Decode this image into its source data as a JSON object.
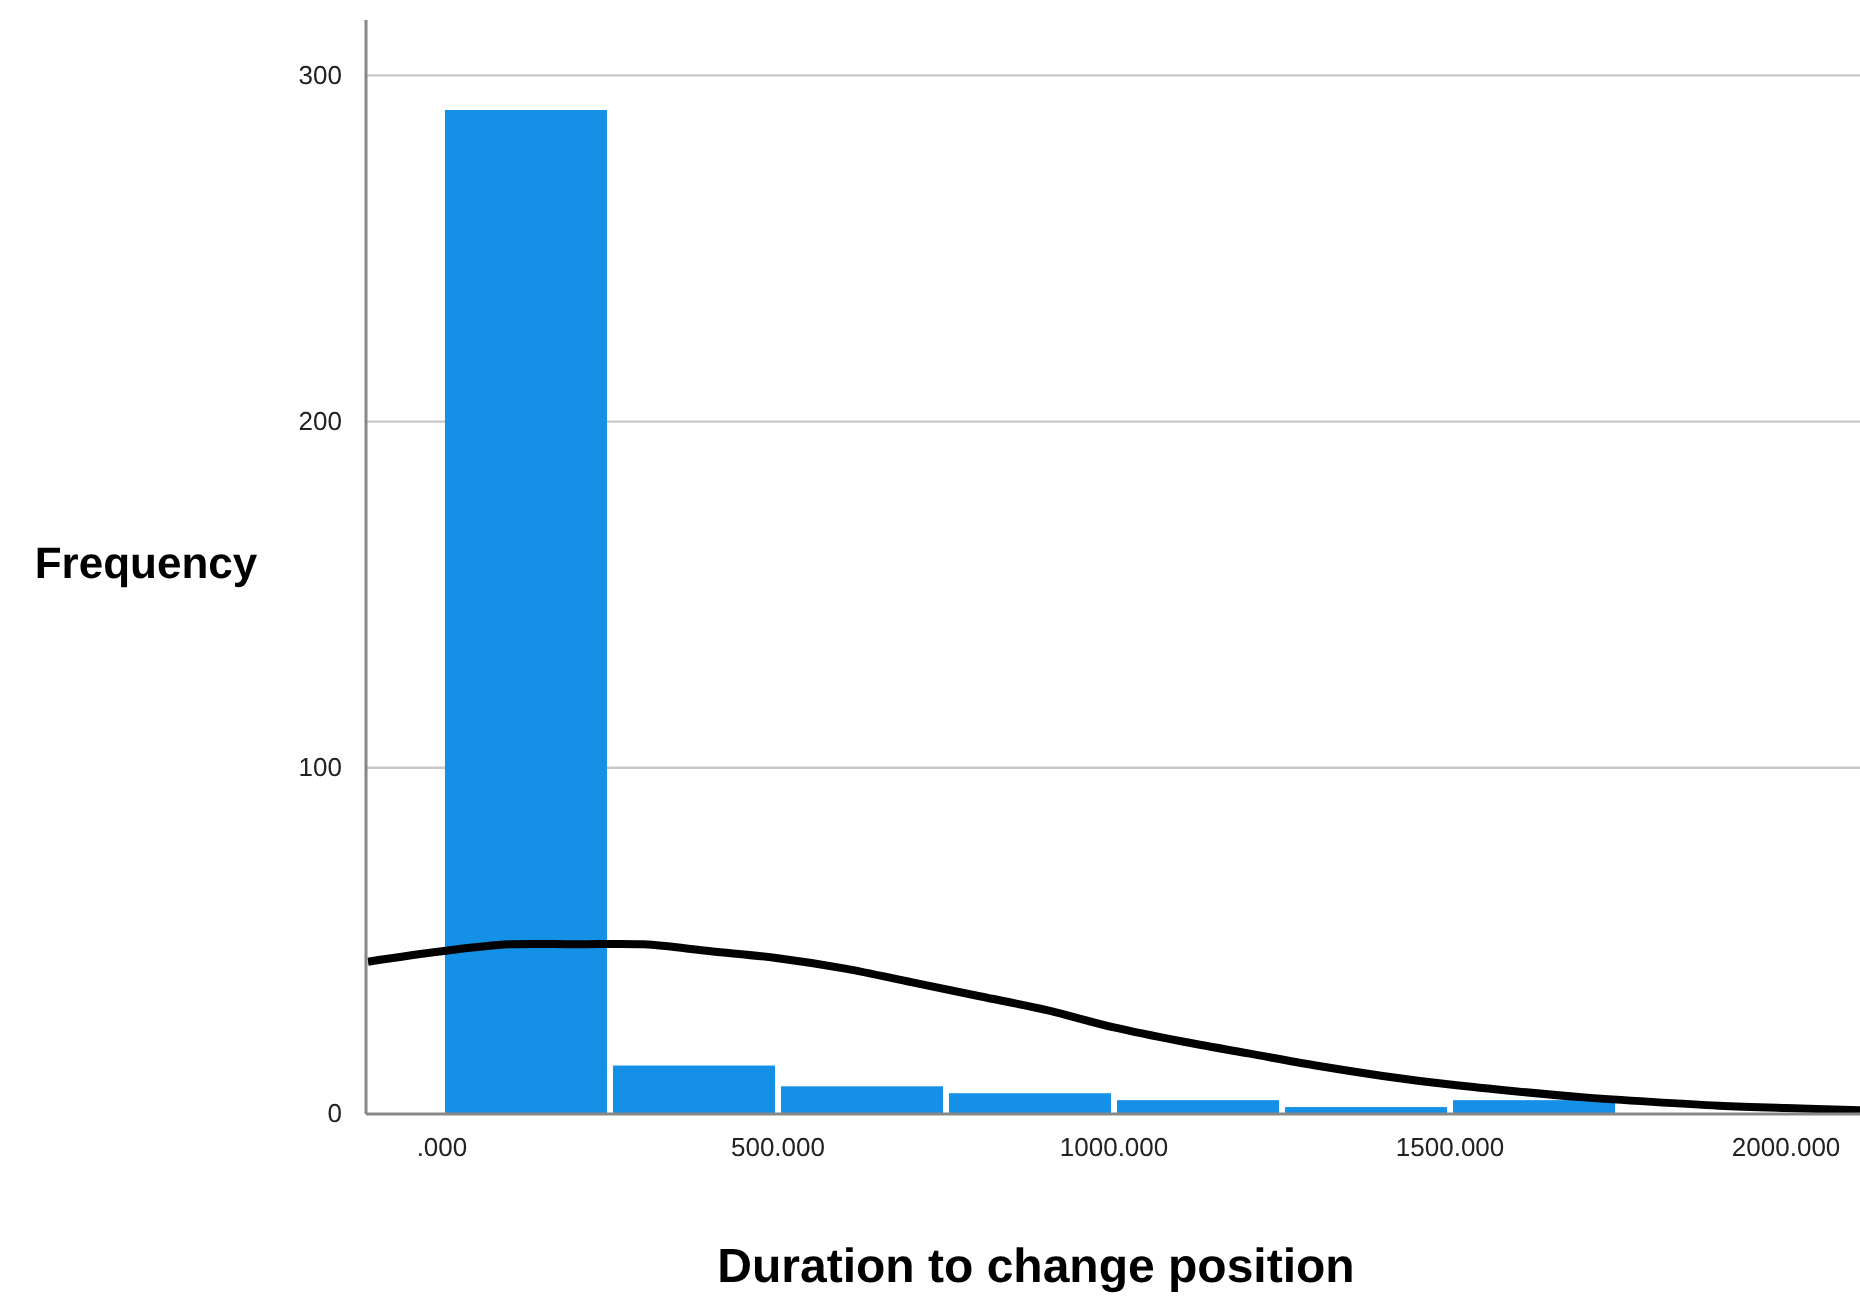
{
  "chart_data": {
    "type": "histogram",
    "xlabel": "Duration to change position",
    "ylabel": "Frequency",
    "bins": [
      0,
      250,
      500,
      750,
      1000,
      1250,
      1500,
      1750
    ],
    "values": [
      290,
      14,
      8,
      6,
      4,
      2,
      4
    ],
    "color": "#1490e6",
    "series": [
      {
        "type": "line",
        "color": "#000000",
        "x": [
          -110,
          0,
          100,
          200,
          300,
          400,
          500,
          600,
          700,
          800,
          900,
          1000,
          1100,
          1200,
          1300,
          1400,
          1500,
          1600,
          1700,
          1800,
          1900,
          2000,
          2110
        ],
        "values": [
          44,
          47,
          49,
          49,
          49,
          47,
          45,
          42,
          38,
          34,
          30,
          25,
          21,
          17.5,
          14,
          11,
          8.5,
          6.5,
          4.8,
          3.5,
          2.4,
          1.7,
          1.1
        ]
      }
    ],
    "xlim": [
      -113,
      2110
    ],
    "ylim": [
      0,
      316
    ],
    "xticks": [
      {
        "value": 0,
        "label": ".000"
      },
      {
        "value": 500,
        "label": "500.000"
      },
      {
        "value": 1000,
        "label": "1000.000"
      },
      {
        "value": 1500,
        "label": "1500.000"
      },
      {
        "value": 2000,
        "label": "2000.000"
      }
    ],
    "yticks": [
      0,
      100,
      200,
      300
    ],
    "grid": "y",
    "line_style": "solid"
  }
}
